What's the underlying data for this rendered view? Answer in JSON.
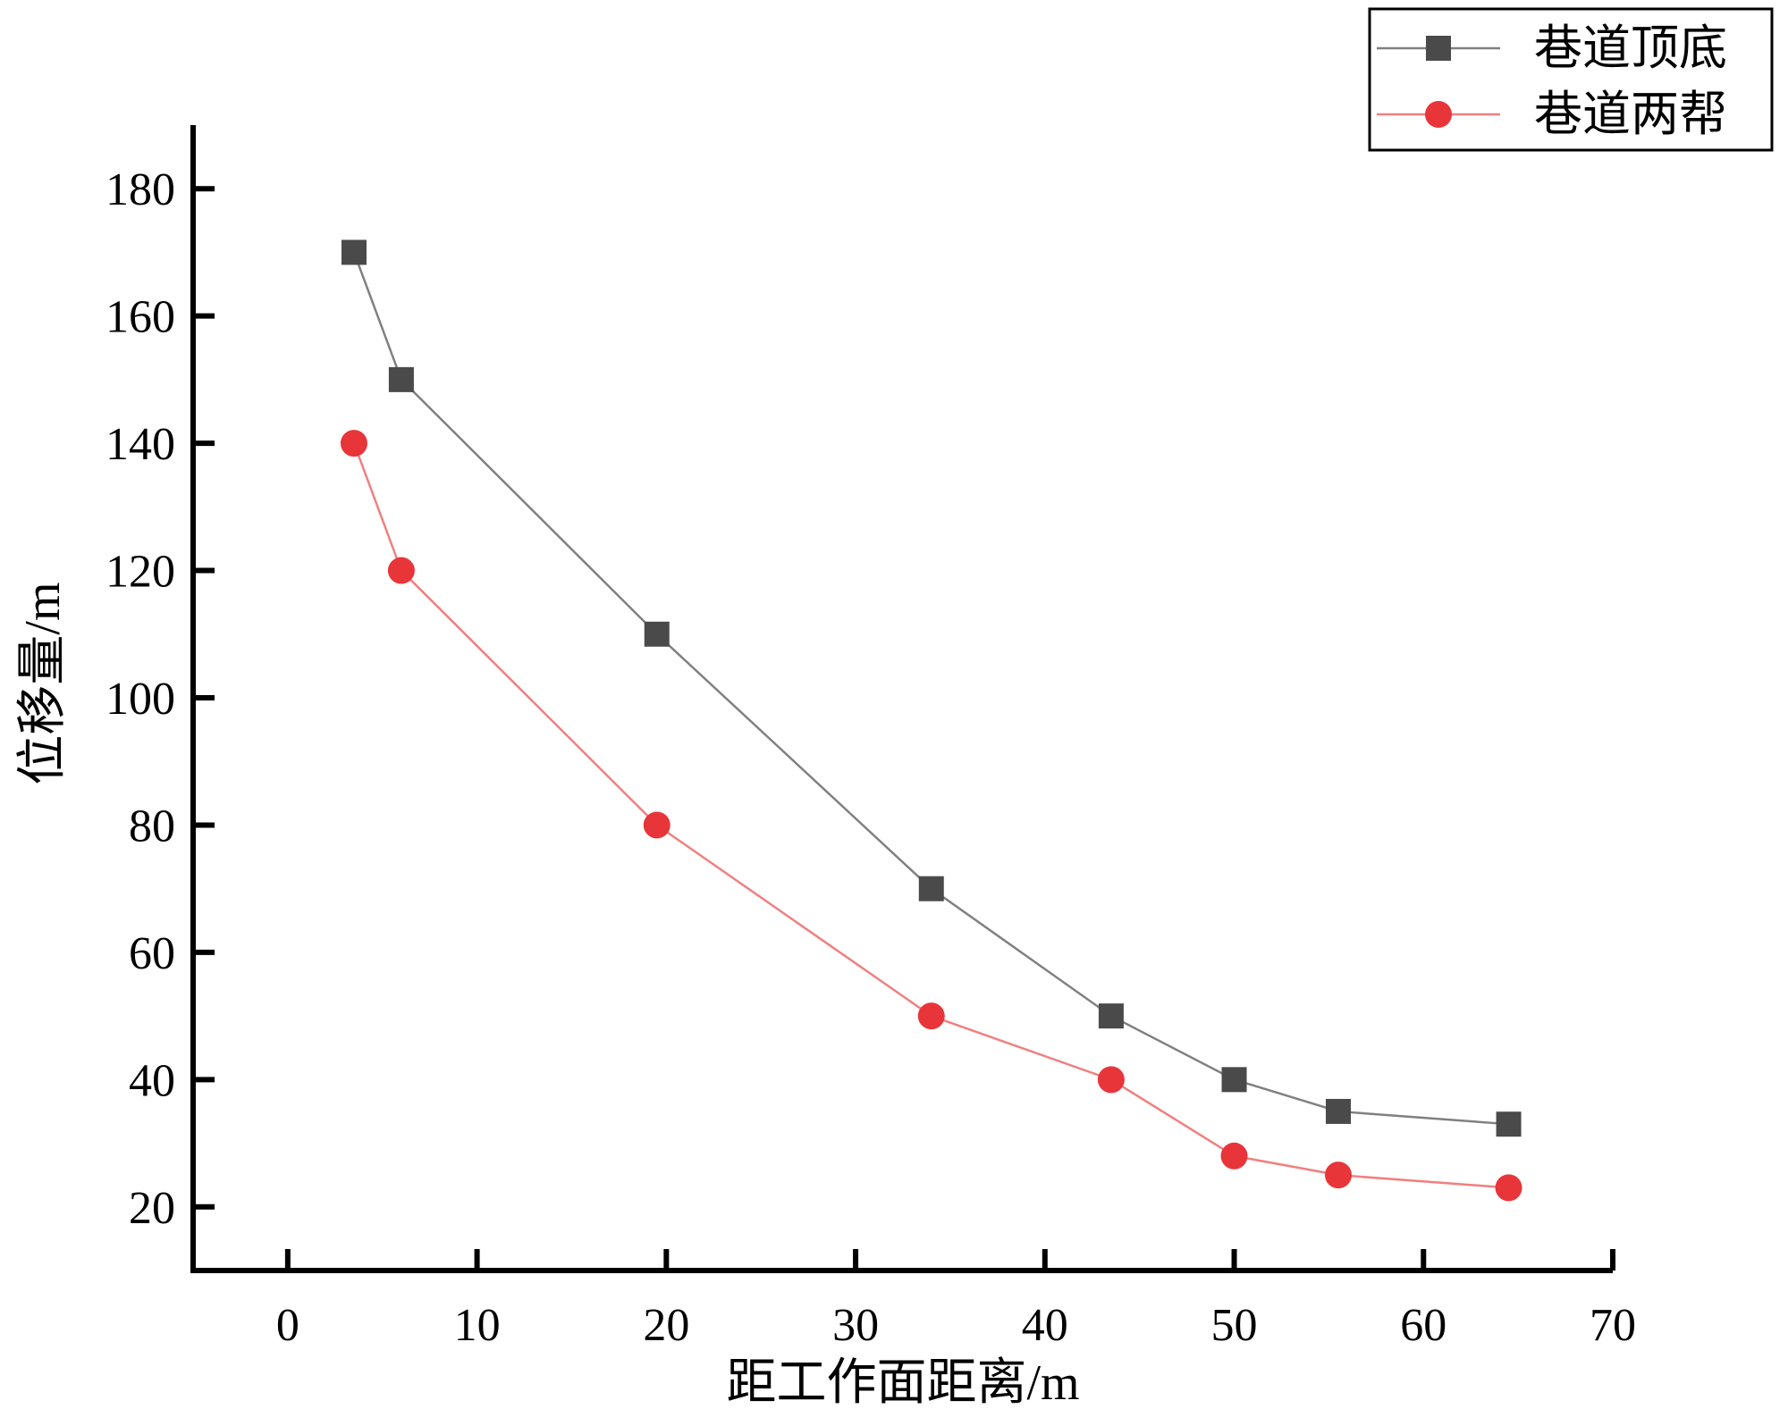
{
  "chart_data": {
    "type": "line",
    "xlabel": "距工作面距离/m",
    "ylabel": "位移量/m",
    "xlim": [
      -5,
      70
    ],
    "ylim": [
      10,
      190
    ],
    "xticks": [
      0,
      10,
      20,
      30,
      40,
      50,
      60,
      70
    ],
    "yticks": [
      20,
      40,
      60,
      80,
      100,
      120,
      140,
      160,
      180
    ],
    "grid": false,
    "legend_position": "top-right",
    "x": [
      3.5,
      6,
      19.5,
      34,
      43.5,
      50,
      55.5,
      64.5
    ],
    "series": [
      {
        "name": "巷道顶底",
        "marker": "square",
        "color": "#4a4a4a",
        "line_color": "#808080",
        "values": [
          170,
          150,
          110,
          70,
          50,
          40,
          35,
          33
        ]
      },
      {
        "name": "巷道两帮",
        "marker": "circle",
        "color": "#e8353a",
        "line_color": "#f08080",
        "values": [
          140,
          120,
          80,
          50,
          40,
          28,
          25,
          23
        ]
      }
    ]
  }
}
